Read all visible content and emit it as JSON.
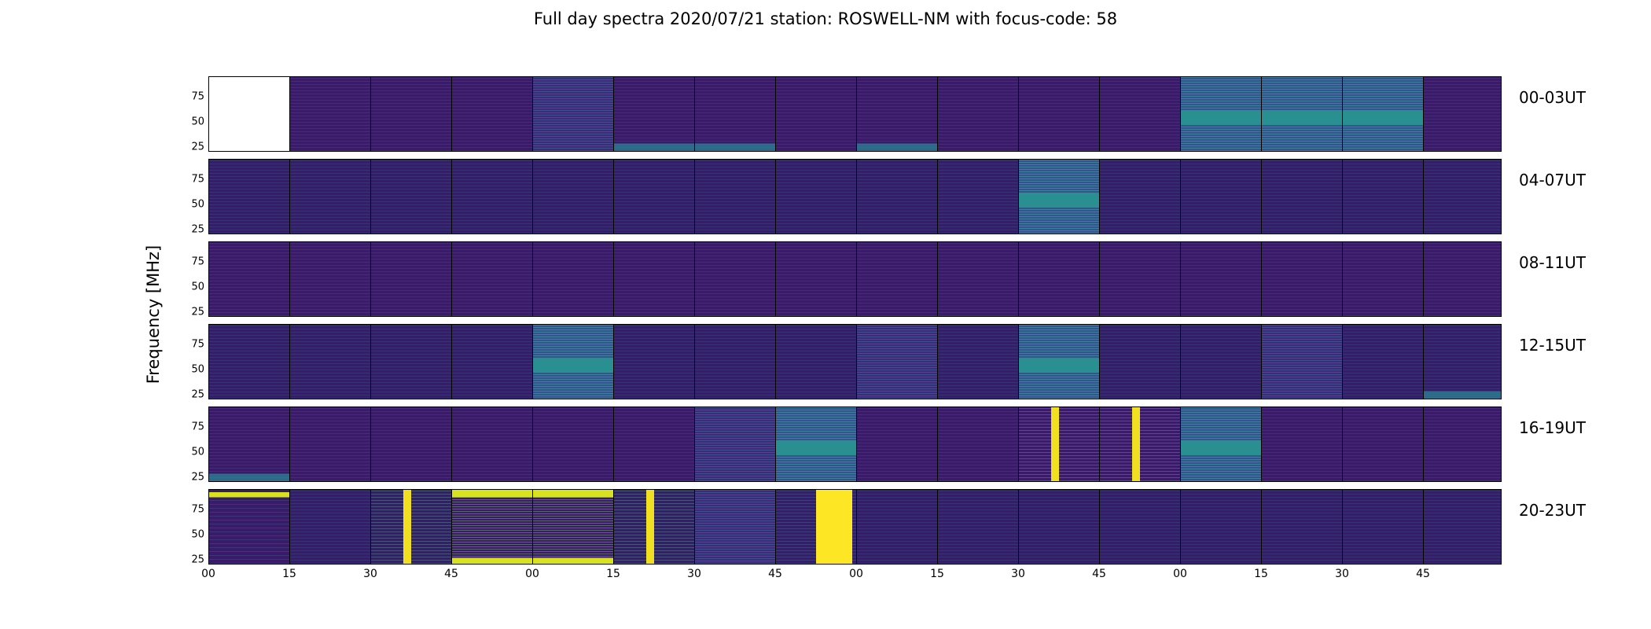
{
  "chart_data": {
    "type": "heatmap",
    "title": "Full day spectra 2020/07/21 station: ROSWELL-NM with focus-code: 58",
    "ylabel": "Frequency [MHz]",
    "ylim": [
      20,
      95
    ],
    "y_ticks": [
      "75",
      "50",
      "25"
    ],
    "x_ticks": [
      "00",
      "15",
      "30",
      "45",
      "00",
      "15",
      "30",
      "45",
      "00",
      "15",
      "30",
      "45",
      "00",
      "15",
      "30",
      "45"
    ],
    "rows": [
      {
        "label": "00-03UT",
        "panels": [
          "empty",
          "low",
          "low",
          "low",
          "mid",
          "lowband",
          "lowband",
          "low",
          "lowband",
          "low",
          "low",
          "low",
          "bright",
          "bright",
          "bright",
          "low"
        ]
      },
      {
        "label": "04-07UT",
        "panels": [
          "low",
          "low",
          "low",
          "low",
          "low",
          "low",
          "low",
          "low",
          "low",
          "low",
          "bright",
          "low",
          "low",
          "low",
          "low",
          "low"
        ]
      },
      {
        "label": "08-11UT",
        "panels": [
          "low",
          "low",
          "low",
          "low",
          "low",
          "low",
          "low",
          "low",
          "low",
          "low",
          "low",
          "low",
          "low",
          "low",
          "low",
          "low"
        ]
      },
      {
        "label": "12-15UT",
        "panels": [
          "low",
          "low",
          "low",
          "low",
          "bright",
          "low",
          "low",
          "low",
          "mid",
          "low",
          "bright",
          "low",
          "low",
          "mid",
          "low",
          "lowband"
        ]
      },
      {
        "label": "16-19UT",
        "panels": [
          "lowband",
          "low",
          "low",
          "low",
          "low",
          "low",
          "mid",
          "bright",
          "low",
          "low",
          "mixed",
          "mixed",
          "bright",
          "low",
          "low",
          "low"
        ]
      },
      {
        "label": "20-23UT",
        "panels": [
          "saturated",
          "low",
          "mixed",
          "high",
          "high",
          "mixed",
          "mid",
          "yellowbar",
          "low",
          "low",
          "low",
          "low",
          "low",
          "low",
          "low",
          "low"
        ]
      }
    ]
  }
}
